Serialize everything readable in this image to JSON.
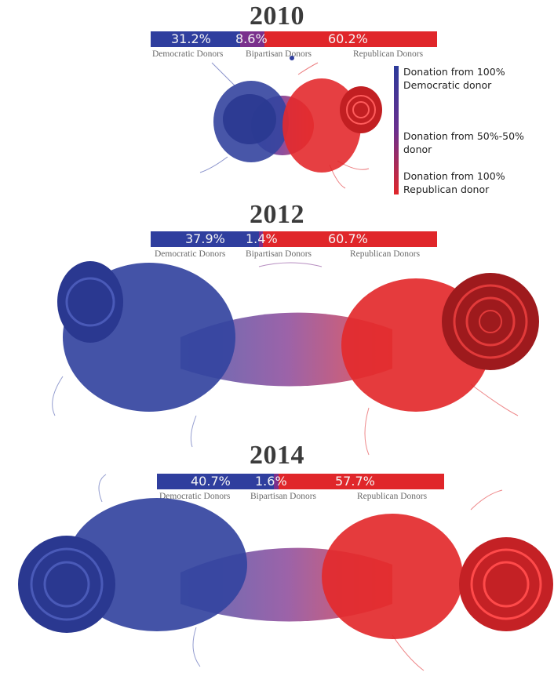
{
  "panels": [
    {
      "year": "2010",
      "democratic_pct": "31.2%",
      "bipartisan_pct": "8.6%",
      "republican_pct": "60.2%",
      "shares": {
        "democratic": 31.2,
        "bipartisan": 8.6,
        "republican": 60.2
      },
      "democratic_label": "Democratic Donors",
      "bipartisan_label": "Bipartisan Donors",
      "republican_label": "Republican Donors"
    },
    {
      "year": "2012",
      "democratic_pct": "37.9%",
      "bipartisan_pct": "1.4%",
      "republican_pct": "60.7%",
      "shares": {
        "democratic": 37.9,
        "bipartisan": 1.4,
        "republican": 60.7
      },
      "democratic_label": "Democratic Donors",
      "bipartisan_label": "Bipartisan Donors",
      "republican_label": "Republican Donors"
    },
    {
      "year": "2014",
      "democratic_pct": "40.7%",
      "bipartisan_pct": "1.6%",
      "republican_pct": "57.7%",
      "shares": {
        "democratic": 40.7,
        "bipartisan": 1.6,
        "republican": 57.7
      },
      "democratic_label": "Democratic Donors",
      "bipartisan_label": "Bipartisan Donors",
      "republican_label": "Republican Donors"
    }
  ],
  "legend": {
    "dem_line1": "Donation from 100%",
    "dem_line2": "Democratic donor",
    "mid": "Donation from 50%-50% donor",
    "rep_line1": "Donation from 100%",
    "rep_line2": "Republican donor"
  },
  "colors": {
    "democratic": "#2f3e9e",
    "bipartisan": "#7a2f8c",
    "republican": "#e0262a",
    "democratic_dark": "#1f2b7a",
    "republican_dark": "#9e1a1d"
  }
}
